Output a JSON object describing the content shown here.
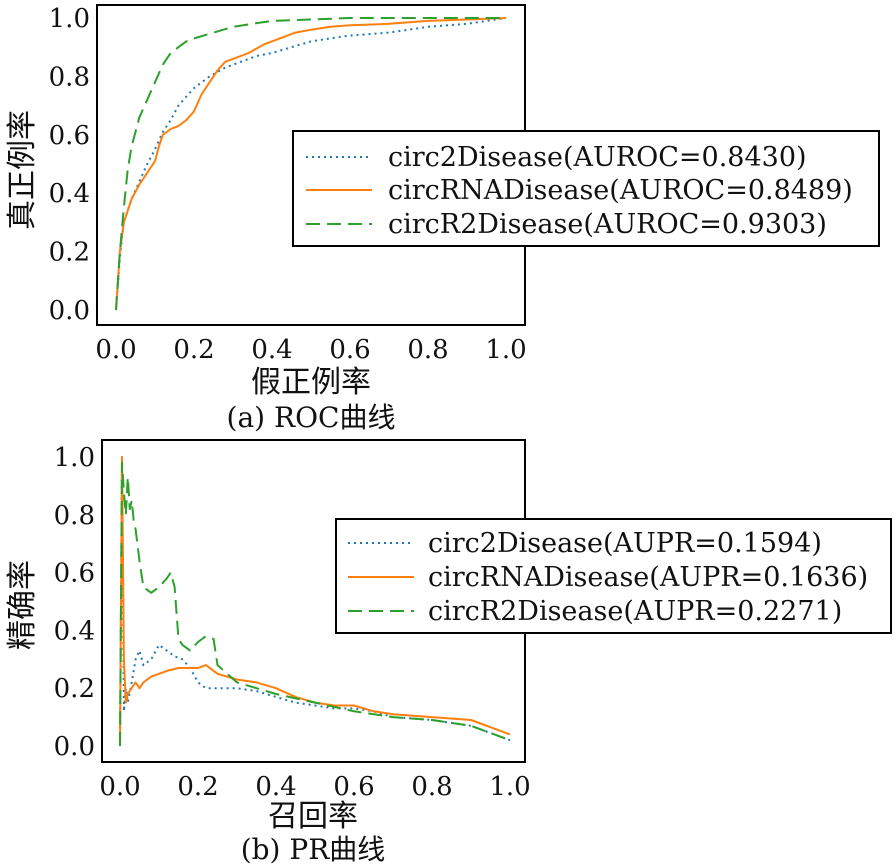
{
  "chart_data": [
    {
      "type": "line",
      "caption": "(a) ROC曲线",
      "xlabel": "假正例率",
      "ylabel": "真正例率",
      "xlim": [
        0,
        1
      ],
      "ylim": [
        0,
        1
      ],
      "xticks": [
        "0.0",
        "0.2",
        "0.4",
        "0.6",
        "0.8",
        "1.0"
      ],
      "yticks": [
        "0.0",
        "0.2",
        "0.4",
        "0.6",
        "0.8",
        "1.0"
      ],
      "grid": false,
      "legend_position": "center-right",
      "series": [
        {
          "name": "circ2Disease(AUROC=0.8430)",
          "color": "#1f77b4",
          "style": "dotted",
          "x": [
            0,
            0.01,
            0.02,
            0.04,
            0.06,
            0.08,
            0.1,
            0.12,
            0.14,
            0.16,
            0.18,
            0.2,
            0.24,
            0.28,
            0.32,
            0.36,
            0.4,
            0.45,
            0.5,
            0.55,
            0.6,
            0.65,
            0.7,
            0.75,
            0.8,
            0.85,
            0.9,
            0.95,
            1.0
          ],
          "y": [
            0,
            0.18,
            0.3,
            0.38,
            0.44,
            0.5,
            0.55,
            0.61,
            0.65,
            0.7,
            0.73,
            0.76,
            0.8,
            0.83,
            0.85,
            0.87,
            0.88,
            0.9,
            0.92,
            0.93,
            0.94,
            0.945,
            0.95,
            0.96,
            0.97,
            0.975,
            0.98,
            0.99,
            1.0
          ]
        },
        {
          "name": "circRNADisease(AUROC=0.8489)",
          "color": "#ff7f0e",
          "style": "solid",
          "x": [
            0,
            0.01,
            0.02,
            0.04,
            0.06,
            0.08,
            0.1,
            0.11,
            0.12,
            0.14,
            0.16,
            0.18,
            0.2,
            0.22,
            0.24,
            0.26,
            0.28,
            0.3,
            0.34,
            0.38,
            0.42,
            0.46,
            0.5,
            0.55,
            0.6,
            0.7,
            0.8,
            0.9,
            1.0
          ],
          "y": [
            0,
            0.2,
            0.3,
            0.38,
            0.43,
            0.47,
            0.51,
            0.56,
            0.6,
            0.62,
            0.63,
            0.65,
            0.68,
            0.74,
            0.78,
            0.82,
            0.85,
            0.86,
            0.88,
            0.91,
            0.93,
            0.95,
            0.96,
            0.97,
            0.975,
            0.98,
            0.99,
            0.995,
            1.0
          ]
        },
        {
          "name": "circR2Disease(AUROC=0.9303)",
          "color": "#2ca02c",
          "style": "dashed",
          "x": [
            0,
            0.01,
            0.02,
            0.03,
            0.04,
            0.06,
            0.08,
            0.1,
            0.12,
            0.14,
            0.16,
            0.18,
            0.2,
            0.25,
            0.3,
            0.35,
            0.4,
            0.5,
            0.6,
            0.7,
            0.8,
            0.9,
            1.0
          ],
          "y": [
            0,
            0.2,
            0.35,
            0.48,
            0.56,
            0.66,
            0.72,
            0.78,
            0.84,
            0.88,
            0.9,
            0.92,
            0.93,
            0.95,
            0.97,
            0.98,
            0.99,
            0.995,
            1.0,
            1.0,
            1.0,
            1.0,
            1.0
          ]
        }
      ]
    },
    {
      "type": "line",
      "caption": "(b) PR曲线",
      "xlabel": "召回率",
      "ylabel": "精确率",
      "xlim": [
        0,
        1
      ],
      "ylim": [
        0,
        1
      ],
      "xticks": [
        "0.0",
        "0.2",
        "0.4",
        "0.6",
        "0.8",
        "1.0"
      ],
      "yticks": [
        "0.0",
        "0.2",
        "0.4",
        "0.6",
        "0.8",
        "1.0"
      ],
      "grid": false,
      "legend_position": "center-right",
      "series": [
        {
          "name": "circ2Disease(AUPR=0.1594)",
          "color": "#1f77b4",
          "style": "dotted",
          "x": [
            0,
            0.005,
            0.01,
            0.015,
            0.02,
            0.03,
            0.04,
            0.05,
            0.06,
            0.08,
            0.1,
            0.12,
            0.14,
            0.16,
            0.18,
            0.2,
            0.22,
            0.25,
            0.3,
            0.35,
            0.4,
            0.45,
            0.5,
            0.55,
            0.6,
            0.65,
            0.7,
            0.8,
            0.9,
            1.0
          ],
          "y": [
            0,
            1.0,
            0.12,
            0.2,
            0.15,
            0.22,
            0.3,
            0.33,
            0.28,
            0.3,
            0.35,
            0.33,
            0.31,
            0.3,
            0.27,
            0.22,
            0.2,
            0.2,
            0.2,
            0.19,
            0.17,
            0.15,
            0.14,
            0.13,
            0.13,
            0.12,
            0.1,
            0.09,
            0.07,
            0.02
          ]
        },
        {
          "name": "circRNADisease(AUPR=0.1636)",
          "color": "#ff7f0e",
          "style": "solid",
          "x": [
            0,
            0.005,
            0.01,
            0.015,
            0.02,
            0.03,
            0.04,
            0.05,
            0.06,
            0.08,
            0.1,
            0.12,
            0.15,
            0.18,
            0.2,
            0.22,
            0.25,
            0.3,
            0.35,
            0.4,
            0.45,
            0.5,
            0.55,
            0.6,
            0.65,
            0.7,
            0.8,
            0.9,
            1.0
          ],
          "y": [
            0,
            1.0,
            0.3,
            0.15,
            0.18,
            0.2,
            0.22,
            0.2,
            0.22,
            0.24,
            0.25,
            0.26,
            0.27,
            0.27,
            0.27,
            0.28,
            0.25,
            0.23,
            0.22,
            0.2,
            0.17,
            0.15,
            0.14,
            0.14,
            0.12,
            0.11,
            0.1,
            0.09,
            0.04
          ]
        },
        {
          "name": "circR2Disease(AUPR=0.2271)",
          "color": "#2ca02c",
          "style": "dashed",
          "x": [
            0,
            0.005,
            0.01,
            0.015,
            0.02,
            0.025,
            0.03,
            0.035,
            0.04,
            0.05,
            0.06,
            0.08,
            0.1,
            0.12,
            0.13,
            0.14,
            0.15,
            0.16,
            0.18,
            0.2,
            0.22,
            0.24,
            0.25,
            0.3,
            0.35,
            0.4,
            0.5,
            0.6,
            0.7,
            0.8,
            0.9,
            1.0
          ],
          "y": [
            0,
            0.98,
            0.88,
            0.8,
            0.93,
            0.82,
            0.85,
            0.78,
            0.75,
            0.64,
            0.55,
            0.53,
            0.55,
            0.58,
            0.6,
            0.55,
            0.37,
            0.35,
            0.33,
            0.36,
            0.38,
            0.37,
            0.28,
            0.22,
            0.2,
            0.18,
            0.15,
            0.12,
            0.1,
            0.09,
            0.07,
            0.02
          ]
        }
      ]
    }
  ]
}
